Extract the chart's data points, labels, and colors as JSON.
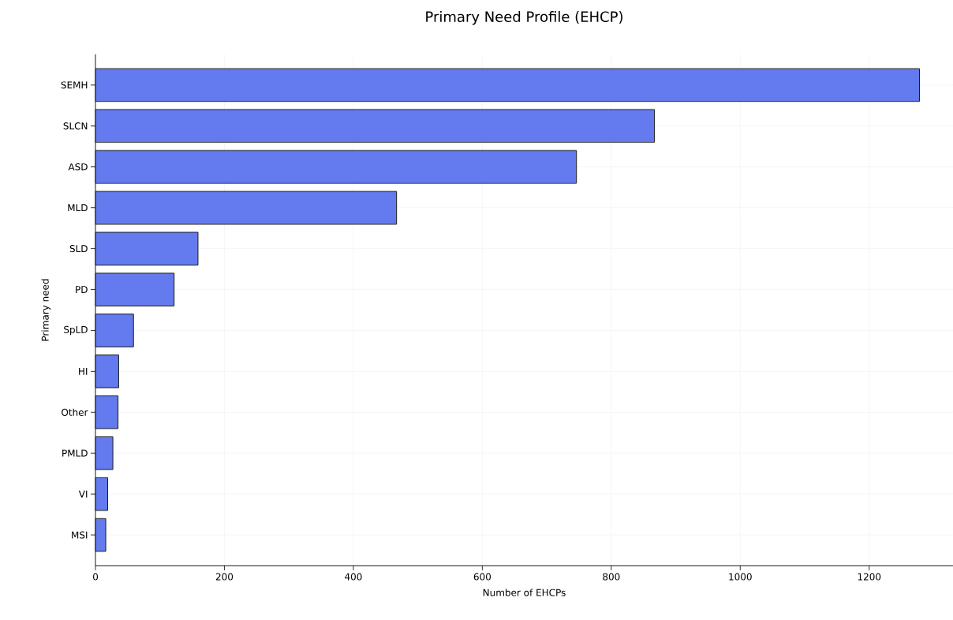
{
  "chart_data": {
    "type": "bar",
    "orientation": "horizontal",
    "title": "Primary Need Profile (EHCP)",
    "xlabel": "Number of EHCPs",
    "ylabel": "Primary need",
    "categories": [
      "SEMH",
      "SLCN",
      "ASD",
      "MLD",
      "SLD",
      "PD",
      "SpLD",
      "HI",
      "Other",
      "PMLD",
      "VI",
      "MSI"
    ],
    "values": [
      1278,
      867,
      746,
      467,
      159,
      122,
      59,
      36,
      35,
      27,
      19,
      16
    ],
    "color": "#637bef",
    "xlim": [
      0,
      1330
    ],
    "xticks": [
      0,
      200,
      400,
      600,
      800,
      1000,
      1200
    ],
    "grid": true
  }
}
